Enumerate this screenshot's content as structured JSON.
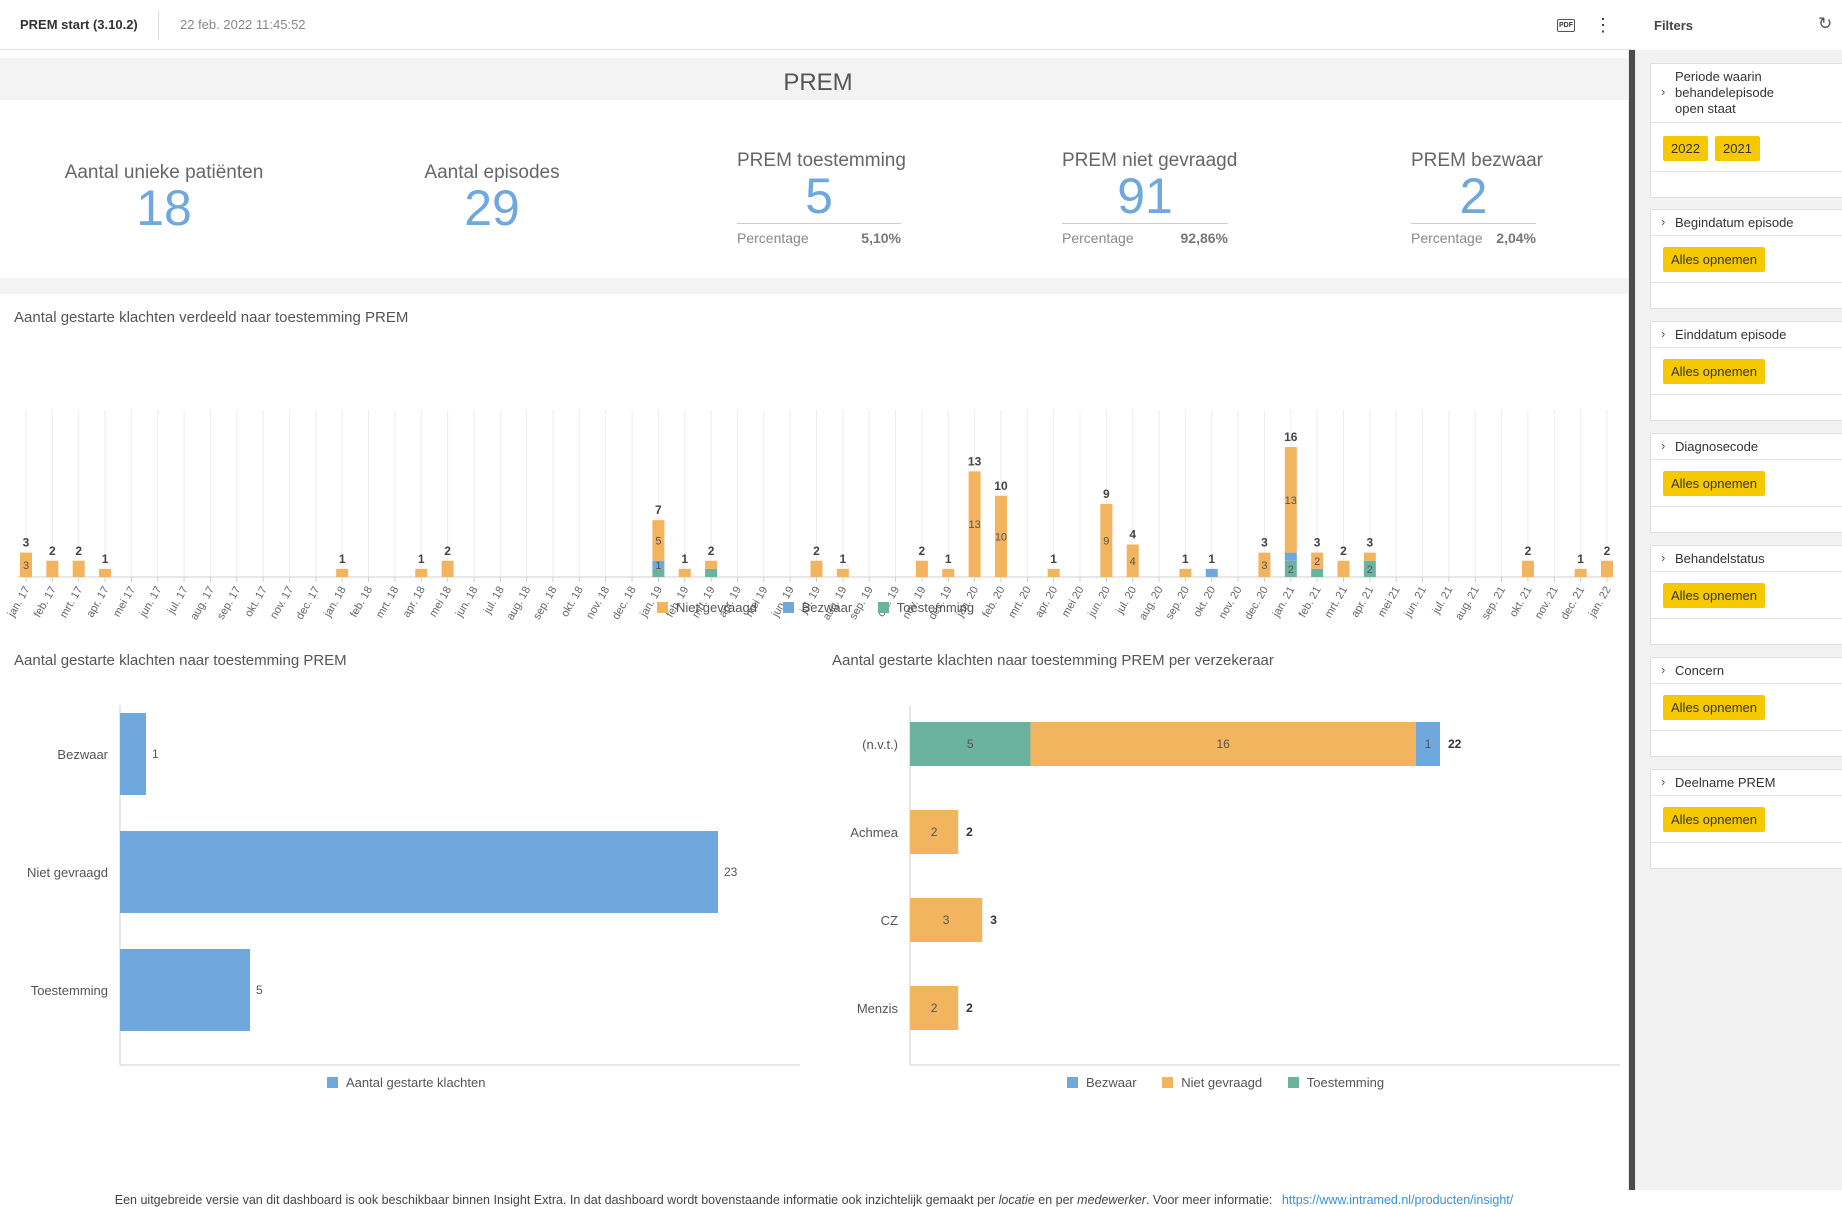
{
  "header": {
    "title": "PREM start (3.10.2)",
    "timestamp": "22 feb. 2022 11:45:52",
    "pdf_label": "PDF",
    "more_icon": "more-vertical-icon"
  },
  "page_title": "PREM",
  "kpis": [
    {
      "label": "Aantal unieke patiënten",
      "value": "18"
    },
    {
      "label": "Aantal episodes",
      "value": "29"
    },
    {
      "label": "PREM toestemming",
      "value": "5",
      "pct_label": "Percentage",
      "pct": "5,10%"
    },
    {
      "label": "PREM niet gevraagd",
      "value": "91",
      "pct_label": "Percentage",
      "pct": "92,86%"
    },
    {
      "label": "PREM bezwaar",
      "value": "2",
      "pct_label": "Percentage",
      "pct": "2,04%"
    }
  ],
  "colors": {
    "niet_gevraagd": "#f2b45f",
    "bezwaar": "#6ea8dc",
    "toestemming": "#6bb39f",
    "accent": "#f6c800"
  },
  "chart_data": [
    {
      "type": "bar",
      "stacked": true,
      "title": "Aantal gestarte klachten verdeeld naar toestemming PREM",
      "categories": [
        "jan. 17",
        "feb. 17",
        "mrt. 17",
        "apr. 17",
        "mei 17",
        "jun. 17",
        "jul. 17",
        "aug. 17",
        "sep. 17",
        "okt. 17",
        "nov. 17",
        "dec. 17",
        "jan. 18",
        "feb. 18",
        "mrt. 18",
        "apr. 18",
        "mei 18",
        "jun. 18",
        "jul. 18",
        "aug. 18",
        "sep. 18",
        "okt. 18",
        "nov. 18",
        "dec. 18",
        "jan. 19",
        "feb. 19",
        "mrt. 19",
        "apr. 19",
        "mei 19",
        "jun. 19",
        "jul. 19",
        "aug. 19",
        "sep. 19",
        "okt. 19",
        "nov. 19",
        "dec. 19",
        "jan. 20",
        "feb. 20",
        "mrt. 20",
        "apr. 20",
        "mei 20",
        "jun. 20",
        "jul. 20",
        "aug. 20",
        "sep. 20",
        "okt. 20",
        "nov. 20",
        "dec. 20",
        "jan. 21",
        "feb. 21",
        "mrt. 21",
        "apr. 21",
        "mei 21",
        "jun. 21",
        "jul. 21",
        "aug. 21",
        "sep. 21",
        "okt. 21",
        "nov. 21",
        "dec. 21",
        "jan. 22"
      ],
      "series": [
        {
          "name": "Niet gevraagd",
          "values": [
            3,
            2,
            2,
            1,
            0,
            0,
            0,
            0,
            0,
            0,
            0,
            0,
            1,
            0,
            0,
            1,
            2,
            0,
            0,
            0,
            0,
            0,
            0,
            0,
            5,
            1,
            1,
            0,
            0,
            0,
            2,
            1,
            0,
            0,
            2,
            1,
            13,
            10,
            0,
            1,
            0,
            9,
            4,
            0,
            1,
            0,
            0,
            3,
            13,
            2,
            2,
            1,
            0,
            0,
            0,
            0,
            0,
            2,
            0,
            1,
            2
          ]
        },
        {
          "name": "Bezwaar",
          "values": [
            0,
            0,
            0,
            0,
            0,
            0,
            0,
            0,
            0,
            0,
            0,
            0,
            0,
            0,
            0,
            0,
            0,
            0,
            0,
            0,
            0,
            0,
            0,
            0,
            1,
            0,
            0,
            0,
            0,
            0,
            0,
            0,
            0,
            0,
            0,
            0,
            0,
            0,
            0,
            0,
            0,
            0,
            0,
            0,
            0,
            1,
            0,
            0,
            1,
            0,
            0,
            0,
            0,
            0,
            0,
            0,
            0,
            0,
            0,
            0,
            0
          ]
        },
        {
          "name": "Toestemming",
          "values": [
            0,
            0,
            0,
            0,
            0,
            0,
            0,
            0,
            0,
            0,
            0,
            0,
            0,
            0,
            0,
            0,
            0,
            0,
            0,
            0,
            0,
            0,
            0,
            0,
            1,
            0,
            1,
            0,
            0,
            0,
            0,
            0,
            0,
            0,
            0,
            0,
            0,
            0,
            0,
            0,
            0,
            0,
            0,
            0,
            0,
            0,
            0,
            0,
            2,
            1,
            0,
            2,
            0,
            0,
            0,
            0,
            0,
            0,
            0,
            0,
            0
          ]
        }
      ],
      "totals": [
        3,
        2,
        2,
        1,
        0,
        0,
        0,
        0,
        0,
        0,
        0,
        0,
        1,
        0,
        0,
        1,
        2,
        0,
        0,
        0,
        0,
        0,
        0,
        0,
        7,
        1,
        2,
        0,
        0,
        0,
        2,
        1,
        0,
        0,
        2,
        1,
        13,
        10,
        0,
        1,
        0,
        9,
        4,
        0,
        1,
        1,
        0,
        3,
        16,
        3,
        2,
        3,
        0,
        0,
        0,
        0,
        0,
        2,
        0,
        1,
        2
      ],
      "segment_labels": [
        {
          "i": 0,
          "s": 0,
          "text": "3"
        },
        {
          "i": 24,
          "s": 0,
          "text": "5"
        },
        {
          "i": 24,
          "s": 1,
          "text": "1"
        },
        {
          "i": 36,
          "s": 0,
          "text": "13"
        },
        {
          "i": 37,
          "s": 0,
          "text": "10"
        },
        {
          "i": 41,
          "s": 0,
          "text": "9"
        },
        {
          "i": 42,
          "s": 0,
          "text": "4"
        },
        {
          "i": 47,
          "s": 0,
          "text": "3"
        },
        {
          "i": 48,
          "s": 0,
          "text": "13"
        },
        {
          "i": 48,
          "s": 2,
          "text": "2"
        },
        {
          "i": 49,
          "s": 0,
          "text": "2"
        },
        {
          "i": 51,
          "s": 2,
          "text": "2"
        }
      ],
      "ylim": [
        0,
        16
      ],
      "legend": "bottom"
    },
    {
      "type": "bar",
      "orientation": "horizontal",
      "title": "Aantal gestarte klachten naar toestemming PREM",
      "categories": [
        "Bezwaar",
        "Niet gevraagd",
        "Toestemming"
      ],
      "series": [
        {
          "name": "Aantal gestarte klachten",
          "values": [
            1,
            23,
            5
          ]
        }
      ],
      "xlim": [
        0,
        25
      ],
      "legend": "bottom"
    },
    {
      "type": "bar",
      "orientation": "horizontal",
      "stacked": true,
      "title": "Aantal gestarte klachten naar toestemming PREM per verzekeraar",
      "categories": [
        "(n.v.t.)",
        "Achmea",
        "CZ",
        "Menzis"
      ],
      "series": [
        {
          "name": "Toestemming",
          "values": [
            5,
            0,
            0,
            0
          ]
        },
        {
          "name": "Niet gevraagd",
          "values": [
            16,
            2,
            3,
            2
          ]
        },
        {
          "name": "Bezwaar",
          "values": [
            1,
            0,
            0,
            0
          ]
        }
      ],
      "totals": [
        22,
        2,
        3,
        2
      ],
      "xlim": [
        0,
        24
      ],
      "legend_order": [
        "Bezwaar",
        "Niet gevraagd",
        "Toestemming"
      ],
      "legend": "bottom"
    }
  ],
  "footer": {
    "text1": "Een uitgebreide versie van dit dashboard is ook beschikbaar binnen Insight Extra. In dat dashboard wordt bovenstaande informatie ook inzichtelijk gemaakt per ",
    "em1": "locatie",
    "text2": " en per ",
    "em2": "medewerker",
    "text3": ". Voor meer informatie: ",
    "link": "https://www.intramed.nl/producten/insight/"
  },
  "filters": {
    "title": "Filters",
    "refresh_icon": "refresh-icon",
    "items": [
      {
        "label": "Periode waarin behandelepisode open staat",
        "chips": [
          "2022",
          "2021"
        ]
      },
      {
        "label": "Begindatum episode",
        "chips": [
          "Alles opnemen"
        ]
      },
      {
        "label": "Einddatum episode",
        "chips": [
          "Alles opnemen"
        ]
      },
      {
        "label": "Diagnosecode",
        "chips": [
          "Alles opnemen"
        ]
      },
      {
        "label": "Behandelstatus",
        "chips": [
          "Alles opnemen"
        ]
      },
      {
        "label": "Concern",
        "chips": [
          "Alles opnemen"
        ]
      },
      {
        "label": "Deelname PREM",
        "chips": [
          "Alles opnemen"
        ]
      }
    ]
  }
}
